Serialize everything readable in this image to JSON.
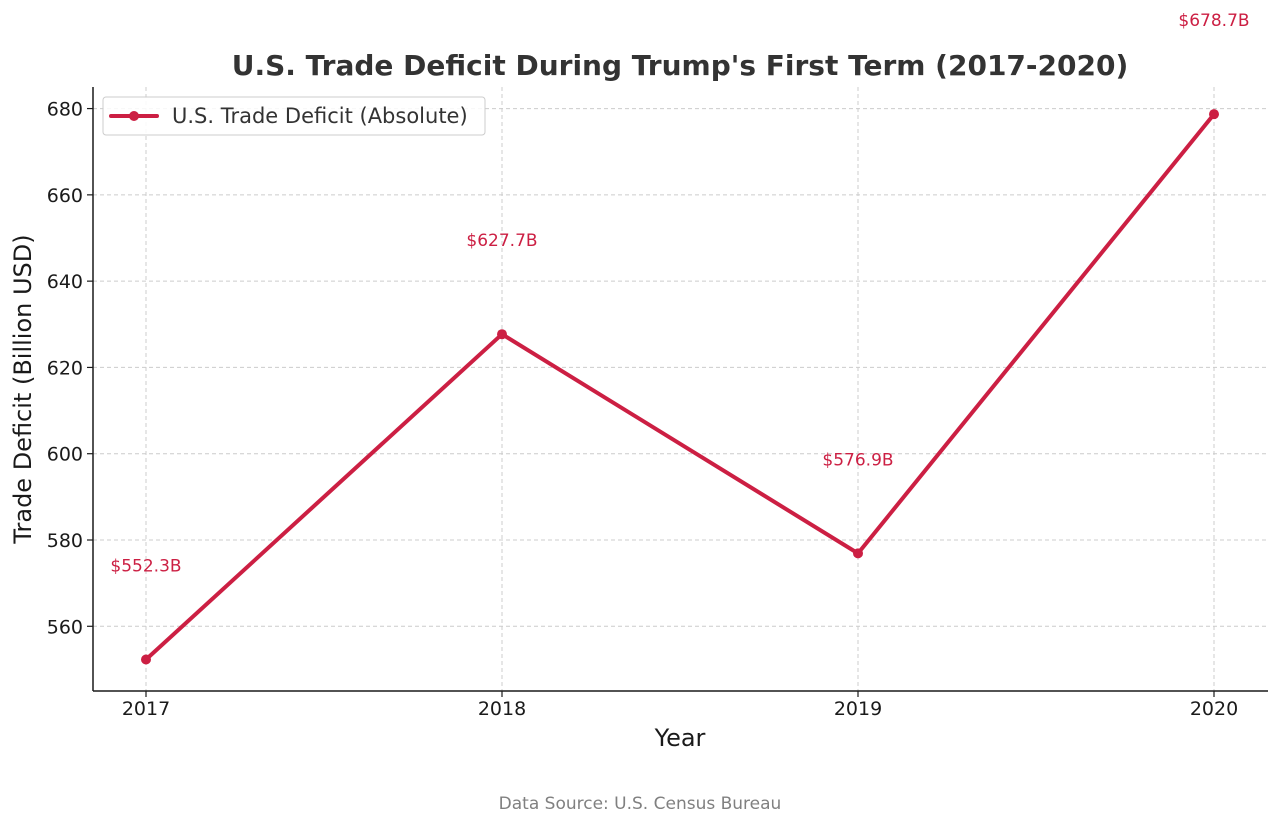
{
  "chart_data": {
    "type": "line",
    "title": "U.S. Trade Deficit During Trump's First Term (2017-2020)",
    "xlabel": "Year",
    "ylabel": "Trade Deficit (Billion USD)",
    "categories": [
      "2017",
      "2018",
      "2019",
      "2020"
    ],
    "series": [
      {
        "name": "U.S. Trade Deficit (Absolute)",
        "values": [
          552.3,
          627.7,
          576.9,
          678.7
        ],
        "labels": [
          "$552.3B",
          "$627.7B",
          "$576.9B",
          "$678.7B"
        ]
      }
    ],
    "ylim": [
      545,
      685
    ],
    "yticks": [
      560,
      580,
      600,
      620,
      640,
      660,
      680
    ],
    "grid": true,
    "legend_position": "top-left",
    "source": "Data Source: U.S. Census Bureau"
  },
  "colors": {
    "series": "#cc1f43",
    "title": "#333333",
    "source": "#808080"
  }
}
